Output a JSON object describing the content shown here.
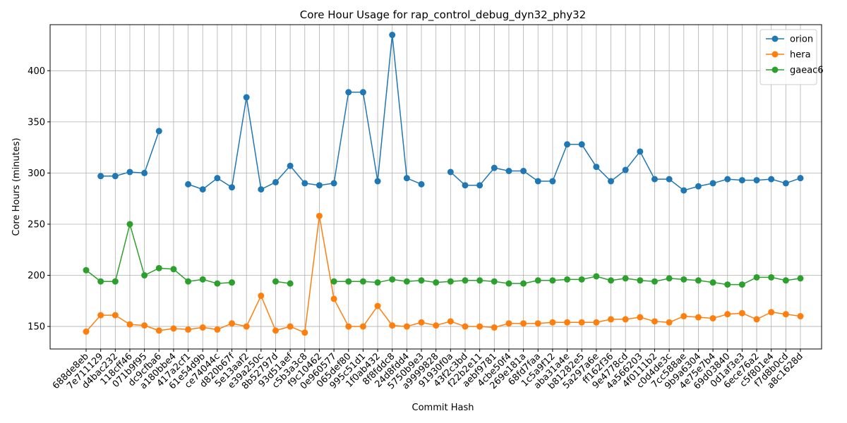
{
  "chart_data": {
    "type": "line",
    "title": "Core Hour Usage for rap_control_debug_dyn32_phy32",
    "xlabel": "Commit Hash",
    "ylabel": "Core Hours (minutes)",
    "ylim": [
      128,
      445
    ],
    "yticks": [
      150,
      200,
      250,
      300,
      350,
      400
    ],
    "grid": true,
    "legend_position": "top-right",
    "categories": [
      "688de8eb",
      "7e711129",
      "d4bac232",
      "118cff46",
      "071b9f95",
      "dc9cfba6",
      "a180bbe4",
      "417a2cf1",
      "61e54d9b",
      "ce74044c",
      "d820b67f",
      "5e13aaf2",
      "e39a250c",
      "8b52797d",
      "93d51aef",
      "c5b3a3c8",
      "f9c10462",
      "0e960577",
      "065def80",
      "995c51d1",
      "1f0ab432",
      "8f8fddc8",
      "24d8fdd4",
      "5750b9e3",
      "a9999828",
      "91930f0a",
      "43f2c3bd",
      "f22b2e11",
      "aebf9781",
      "4cbe50f4",
      "269e181a",
      "68fd7faa",
      "1c5a9f12",
      "aba31a4e",
      "b81282e5",
      "5a297a6e",
      "ff162f36",
      "9e4778cd",
      "4a566203",
      "4f0111b2",
      "c0d4de3c",
      "7cc588ae",
      "9b9a6304",
      "4e75e7b4",
      "69d03840",
      "0d1af3e3",
      "6ece76a2",
      "c5f801e4",
      "f7d8b0cd",
      "a8c1628d"
    ],
    "series": [
      {
        "name": "orion",
        "color": "#1f77b4",
        "values": [
          null,
          297,
          297,
          301,
          300,
          341,
          null,
          289,
          284,
          295,
          286,
          374,
          284,
          291,
          307,
          290,
          288,
          290,
          379,
          379,
          292,
          435,
          295,
          289,
          null,
          301,
          288,
          288,
          305,
          302,
          302,
          292,
          292,
          328,
          328,
          306,
          292,
          303,
          321,
          294,
          294,
          283,
          287,
          290,
          294,
          293,
          293,
          294,
          290,
          295
        ]
      },
      {
        "name": "hera",
        "color": "#ff7f0e",
        "values": [
          145,
          161,
          161,
          152,
          151,
          146,
          148,
          147,
          149,
          147,
          153,
          150,
          180,
          146,
          150,
          144,
          258,
          177,
          150,
          150,
          170,
          151,
          150,
          154,
          151,
          155,
          150,
          150,
          149,
          153,
          153,
          153,
          154,
          154,
          154,
          154,
          157,
          157,
          159,
          155,
          154,
          160,
          159,
          158,
          162,
          163,
          157,
          164,
          162,
          160
        ]
      },
      {
        "name": "gaeac6",
        "color": "#2ca02c",
        "values": [
          205,
          194,
          194,
          250,
          200,
          207,
          206,
          194,
          196,
          192,
          193,
          null,
          null,
          194,
          192,
          null,
          null,
          194,
          194,
          194,
          193,
          196,
          194,
          195,
          193,
          194,
          195,
          195,
          194,
          192,
          192,
          195,
          195,
          196,
          196,
          199,
          195,
          197,
          195,
          194,
          197,
          196,
          195,
          193,
          191,
          191,
          198,
          198,
          195,
          197
        ]
      }
    ]
  }
}
